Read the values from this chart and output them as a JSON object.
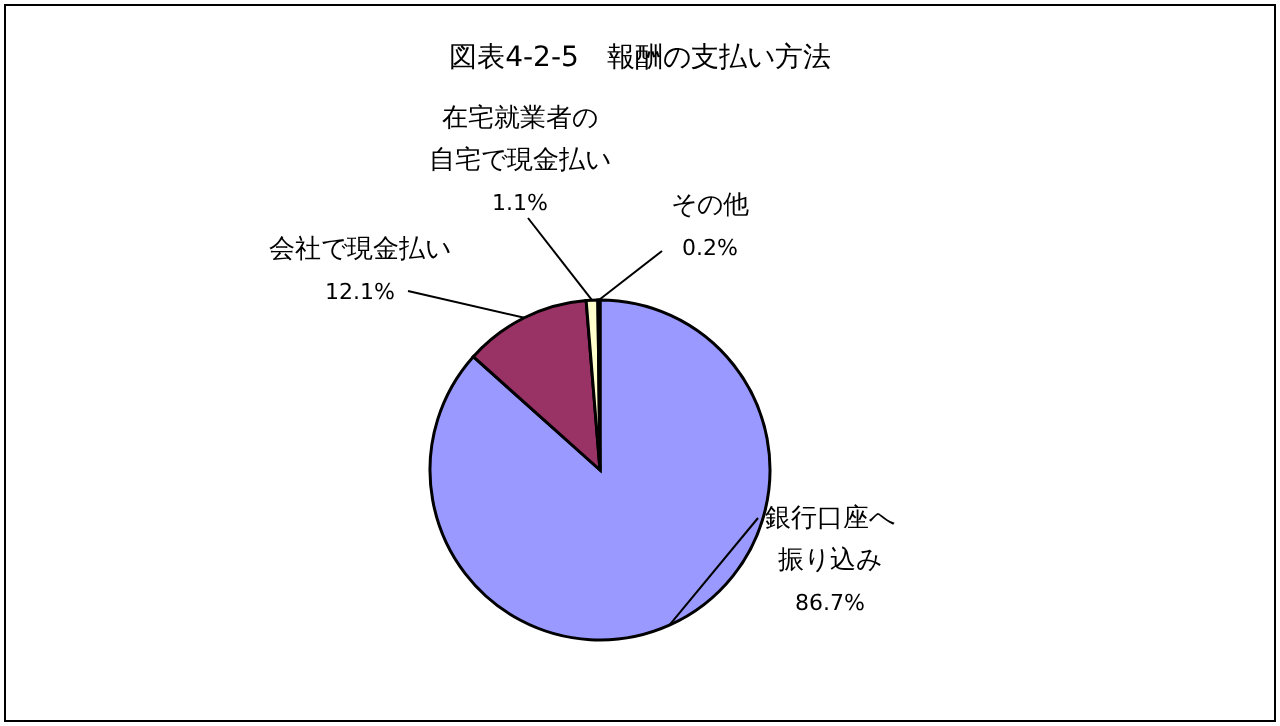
{
  "chart_data": {
    "type": "pie",
    "title": "図表4-2-5　報酬の支払い方法",
    "categories": [
      "銀行口座へ振り込み",
      "会社で現金払い",
      "在宅就業者の自宅で現金払い",
      "その他"
    ],
    "values": [
      86.7,
      12.1,
      1.1,
      0.2
    ],
    "value_labels": [
      "86.7%",
      "12.1%",
      "1.1%",
      "0.2%"
    ],
    "colors": [
      "#9999ff",
      "#993366",
      "#ffffcc",
      "#ccffff"
    ],
    "legend": false
  }
}
